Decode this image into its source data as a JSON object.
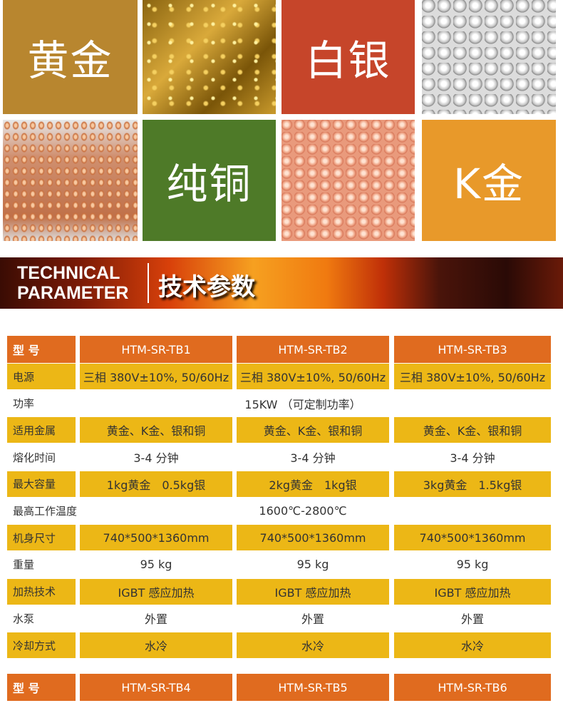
{
  "tiles": {
    "gold": "黄金",
    "silver": "白银",
    "copper": "纯铜",
    "kgold": "K金"
  },
  "colors": {
    "gold_tile": "#b8862f",
    "silver_tile": "#c6452a",
    "copper_tile": "#4e7a28",
    "kgold_tile": "#e8992a",
    "header": "#e06b1f",
    "row": "#ecb716"
  },
  "banner": {
    "line1": "TECHNICAL",
    "line2": "PARAMETER",
    "cn": "技术参数"
  },
  "table1": {
    "header": {
      "label": "型 号",
      "models": [
        "HTM-SR-TB1",
        "HTM-SR-TB2",
        "HTM-SR-TB3"
      ]
    },
    "rows": [
      {
        "label": "电源",
        "values": [
          "三相 380V±10%, 50/60Hz",
          "三相 380V±10%, 50/60Hz",
          "三相 380V±10%, 50/60Hz"
        ]
      },
      {
        "label": "功率",
        "merged": "15KW （可定制功率）"
      },
      {
        "label": "适用金属",
        "values": [
          "黄金、K金、银和铜",
          "黄金、K金、银和铜",
          "黄金、K金、银和铜"
        ]
      },
      {
        "label": "熔化时间",
        "values": [
          "3-4 分钟",
          "3-4 分钟",
          "3-4 分钟"
        ]
      },
      {
        "label": "最大容量",
        "values": [
          "1kg黄金　0.5kg银",
          "2kg黄金　1kg银",
          "3kg黄金　1.5kg银"
        ]
      },
      {
        "label": "最高工作温度",
        "merged": "1600℃-2800℃"
      },
      {
        "label": "机身尺寸",
        "values": [
          "740*500*1360mm",
          "740*500*1360mm",
          "740*500*1360mm"
        ]
      },
      {
        "label": "重量",
        "values": [
          "95 kg",
          "95 kg",
          "95 kg"
        ]
      },
      {
        "label": "加热技术",
        "values": [
          "IGBT 感应加热",
          "IGBT 感应加热",
          "IGBT 感应加热"
        ]
      },
      {
        "label": "水泵",
        "values": [
          "外置",
          "外置",
          "外置"
        ]
      },
      {
        "label": "冷却方式",
        "values": [
          "水冷",
          "水冷",
          "水冷"
        ]
      }
    ]
  },
  "table2": {
    "header": {
      "label": "型 号",
      "models": [
        "HTM-SR-TB4",
        "HTM-SR-TB5",
        "HTM-SR-TB6"
      ]
    }
  }
}
